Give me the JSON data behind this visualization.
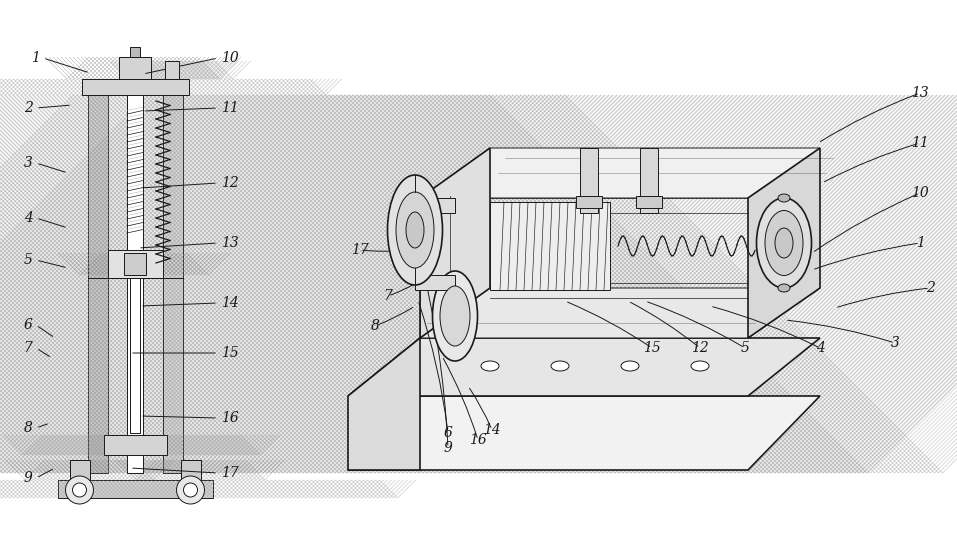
{
  "bg_color": "#ffffff",
  "line_color": "#1a1a1a",
  "figsize": [
    9.57,
    5.38
  ],
  "dpi": 100,
  "left_labels_left": [
    [
      "1",
      35,
      480,
      90,
      465
    ],
    [
      "2",
      28,
      430,
      72,
      433
    ],
    [
      "3",
      28,
      375,
      68,
      365
    ],
    [
      "4",
      28,
      320,
      68,
      310
    ],
    [
      "5",
      28,
      278,
      68,
      270
    ],
    [
      "6",
      28,
      213,
      55,
      200
    ],
    [
      "7",
      28,
      190,
      52,
      180
    ],
    [
      "8",
      28,
      110,
      50,
      115
    ],
    [
      "9",
      28,
      60,
      55,
      70
    ]
  ],
  "left_labels_right": [
    [
      "10",
      230,
      480,
      143,
      464
    ],
    [
      "11",
      230,
      430,
      143,
      427
    ],
    [
      "12",
      230,
      355,
      140,
      350
    ],
    [
      "13",
      230,
      295,
      138,
      290
    ],
    [
      "14",
      230,
      235,
      140,
      232
    ],
    [
      "15",
      230,
      185,
      130,
      185
    ],
    [
      "16",
      230,
      120,
      140,
      122
    ],
    [
      "17",
      230,
      65,
      130,
      70
    ]
  ],
  "right_labels": [
    [
      "1",
      920,
      295,
      812,
      268
    ],
    [
      "2",
      930,
      250,
      835,
      230
    ],
    [
      "3",
      895,
      195,
      785,
      218
    ],
    [
      "4",
      820,
      190,
      710,
      232
    ],
    [
      "5",
      745,
      190,
      645,
      237
    ],
    [
      "6",
      448,
      105,
      418,
      238
    ],
    [
      "7",
      388,
      242,
      418,
      256
    ],
    [
      "8",
      375,
      212,
      415,
      232
    ],
    [
      "9",
      448,
      90,
      418,
      290
    ],
    [
      "10",
      920,
      345,
      812,
      285
    ],
    [
      "11",
      920,
      395,
      822,
      355
    ],
    [
      "12",
      700,
      190,
      628,
      237
    ],
    [
      "13",
      920,
      445,
      818,
      395
    ],
    [
      "14",
      492,
      108,
      468,
      152
    ],
    [
      "15",
      652,
      190,
      565,
      237
    ],
    [
      "16",
      478,
      98,
      442,
      182
    ],
    [
      "17",
      360,
      288,
      412,
      288
    ]
  ]
}
